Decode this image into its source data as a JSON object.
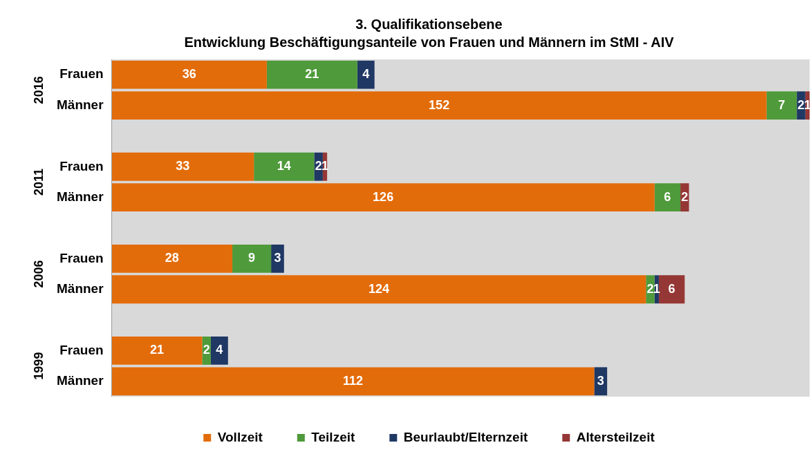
{
  "chart_data": {
    "type": "bar",
    "orientation": "horizontal",
    "stacked": true,
    "title": "3. Qualifikationsebene",
    "subtitle": "Entwicklung Beschäftigungsanteile von Frauen und Männern im StMI - AIV",
    "categories": [
      "Frauen",
      "Männer",
      null,
      "Frauen",
      "Männer",
      null,
      "Frauen",
      "Männer",
      null,
      "Frauen",
      "Männer"
    ],
    "series": [
      {
        "name": "Vollzeit",
        "color": "#e36c0a",
        "values": [
          36,
          152,
          null,
          33,
          126,
          null,
          28,
          124,
          null,
          21,
          112
        ]
      },
      {
        "name": "Teilzeit",
        "color": "#4f9a3a",
        "values": [
          21,
          7,
          null,
          14,
          6,
          null,
          9,
          2,
          null,
          2,
          null
        ]
      },
      {
        "name": "Beurlaubt/Elternzeit",
        "color": "#1f3864",
        "values": [
          4,
          2,
          null,
          2,
          null,
          null,
          3,
          1,
          null,
          4,
          3
        ]
      },
      {
        "name": "Altersteilzeit",
        "color": "#953735",
        "values": [
          null,
          1,
          null,
          1,
          2,
          null,
          null,
          6,
          null,
          null,
          null
        ]
      }
    ],
    "annotations": [
      "2016",
      "2011",
      "2006",
      "1999"
    ],
    "data_labels": true,
    "legend": "bottom",
    "grid": false,
    "tick_labels": "y"
  }
}
